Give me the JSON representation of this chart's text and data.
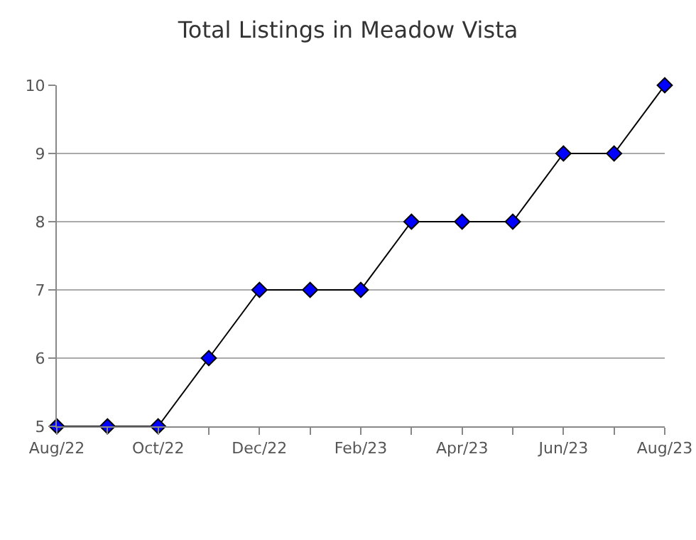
{
  "chart_data": {
    "type": "line",
    "title": "Total Listings in Meadow Vista",
    "categories": [
      "Aug/22",
      null,
      "Oct/22",
      null,
      "Dec/22",
      null,
      "Feb/23",
      null,
      "Apr/23",
      null,
      "Jun/23",
      null,
      "Aug/23"
    ],
    "series": [
      {
        "color": "#0000ff",
        "values": [
          5,
          5,
          5,
          6,
          7,
          7,
          7,
          8,
          8,
          8,
          9,
          9,
          10
        ]
      }
    ],
    "ylim": [
      5,
      10
    ],
    "yticks": [
      5,
      6,
      7,
      8,
      9,
      10
    ],
    "grid": "y",
    "marker": "diamond",
    "line_style": "solid"
  }
}
